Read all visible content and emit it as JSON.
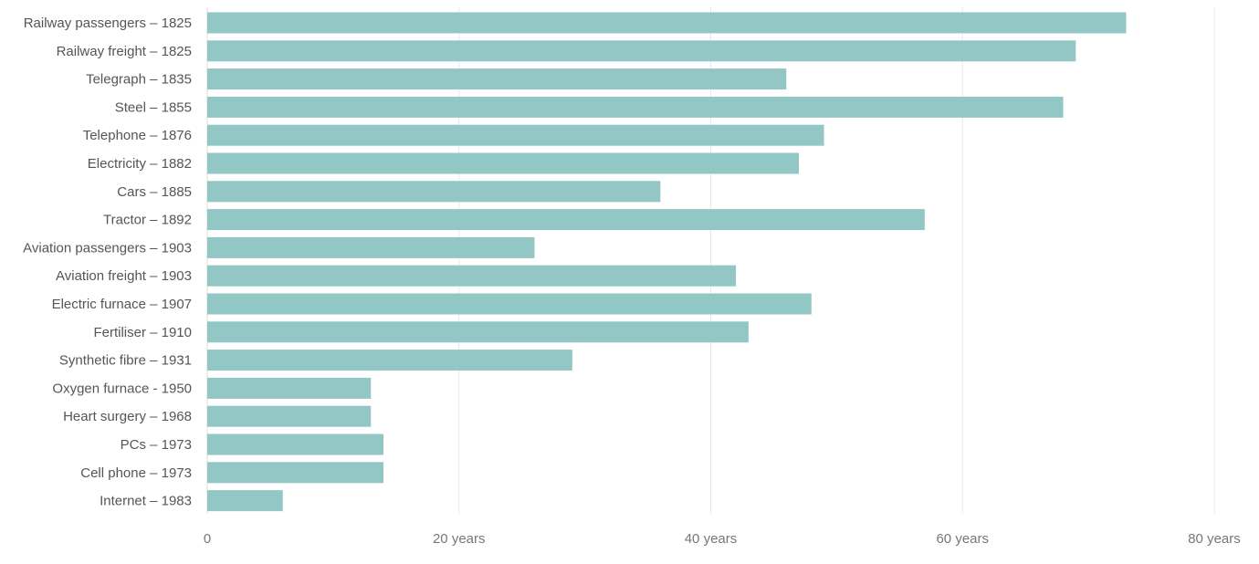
{
  "chart_data": {
    "type": "bar",
    "orientation": "horizontal",
    "title": "",
    "xlabel": "",
    "ylabel": "",
    "categories": [
      "Railway passengers – 1825",
      "Railway freight – 1825",
      "Telegraph – 1835",
      "Steel – 1855",
      "Telephone – 1876",
      "Electricity – 1882",
      "Cars – 1885",
      "Tractor – 1892",
      "Aviation passengers – 1903",
      "Aviation freight – 1903",
      "Electric furnace – 1907",
      "Fertiliser – 1910",
      "Synthetic fibre – 1931",
      "Oxygen furnace - 1950",
      "Heart surgery – 1968",
      "PCs – 1973",
      "Cell phone – 1973",
      "Internet – 1983"
    ],
    "values": [
      73,
      69,
      46,
      68,
      49,
      47,
      36,
      57,
      26,
      42,
      48,
      43,
      29,
      13,
      13,
      14,
      14,
      6
    ],
    "xlim": [
      0,
      80
    ],
    "xticks": [
      0,
      20,
      40,
      60,
      80
    ],
    "xtick_labels": [
      "0",
      "20 years",
      "40 years",
      "60 years",
      "80 years"
    ],
    "grid": true,
    "bar_color": "#93c7c6"
  }
}
